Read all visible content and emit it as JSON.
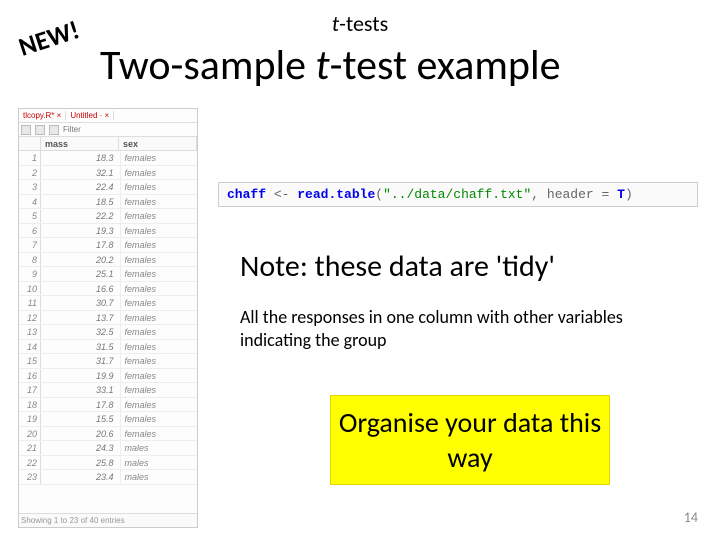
{
  "badge": "NEW!",
  "header_small_ital": "t",
  "header_small_rest": "-tests",
  "header_large_pre": "Two-sample ",
  "header_large_ital": "t",
  "header_large_post": "-test example",
  "tabs": {
    "a": "tlcopy.R* ×",
    "b": "Untitled · ×"
  },
  "toolbar": {
    "filter": "Filter"
  },
  "columns": {
    "a": "mass",
    "b": "sex"
  },
  "rows": [
    {
      "i": "1",
      "v": "18.3",
      "s": "females"
    },
    {
      "i": "2",
      "v": "32.1",
      "s": "females"
    },
    {
      "i": "3",
      "v": "22.4",
      "s": "females"
    },
    {
      "i": "4",
      "v": "18.5",
      "s": "females"
    },
    {
      "i": "5",
      "v": "22.2",
      "s": "females"
    },
    {
      "i": "6",
      "v": "19.3",
      "s": "females"
    },
    {
      "i": "7",
      "v": "17.8",
      "s": "females"
    },
    {
      "i": "8",
      "v": "20.2",
      "s": "females"
    },
    {
      "i": "9",
      "v": "25.1",
      "s": "females"
    },
    {
      "i": "10",
      "v": "16.6",
      "s": "females"
    },
    {
      "i": "11",
      "v": "30.7",
      "s": "females"
    },
    {
      "i": "12",
      "v": "13.7",
      "s": "females"
    },
    {
      "i": "13",
      "v": "32.5",
      "s": "females"
    },
    {
      "i": "14",
      "v": "31.5",
      "s": "females"
    },
    {
      "i": "15",
      "v": "31.7",
      "s": "females"
    },
    {
      "i": "16",
      "v": "19.9",
      "s": "females"
    },
    {
      "i": "17",
      "v": "33.1",
      "s": "females"
    },
    {
      "i": "18",
      "v": "17.8",
      "s": "females"
    },
    {
      "i": "19",
      "v": "15.5",
      "s": "females"
    },
    {
      "i": "20",
      "v": "20.6",
      "s": "females"
    },
    {
      "i": "21",
      "v": "24.3",
      "s": "males"
    },
    {
      "i": "22",
      "v": "25.8",
      "s": "males"
    },
    {
      "i": "23",
      "v": "23.4",
      "s": "males"
    }
  ],
  "footer_text": "Showing 1 to 23 of 40 entries",
  "code": {
    "var": "chaff",
    "arrow": " <- ",
    "fn": "read.table",
    "open": "(",
    "str": "\"../data/chaff.txt\"",
    "sep": ", header = ",
    "t": "T",
    "close": ")"
  },
  "note_heading": "Note: these data are  'tidy'",
  "note_body": "All the responses in one column with other variables indicating the group",
  "organise": "Organise your data this way",
  "page_num": "14"
}
